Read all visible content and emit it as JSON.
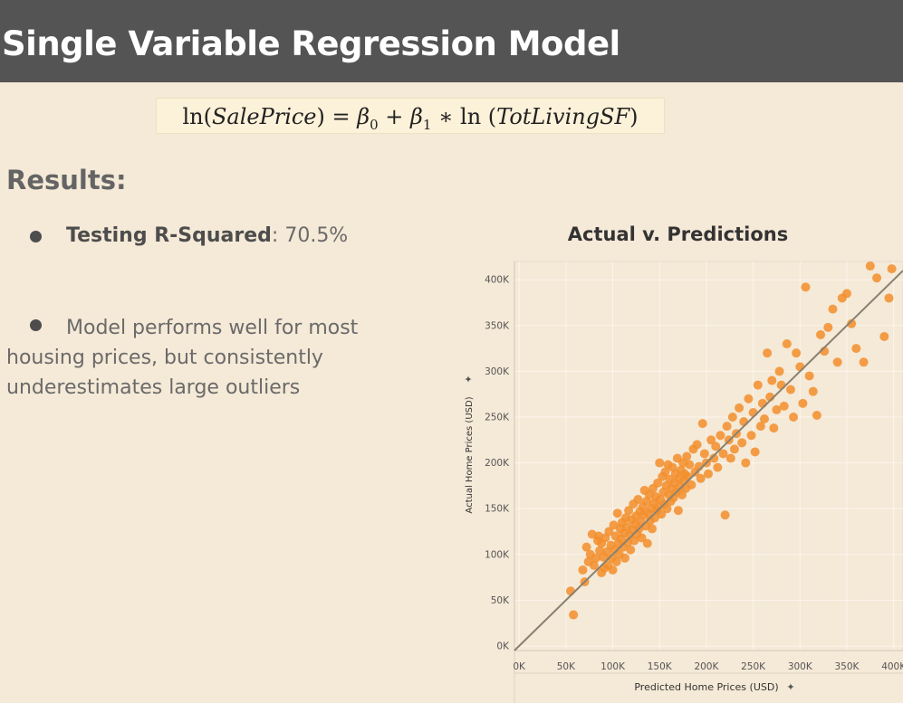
{
  "header": {
    "title": "Single Variable Regression Model"
  },
  "formula": {
    "lhs_fn": "ln(",
    "lhs_var": "SalePrice",
    "lhs_close": ") = ",
    "b0": "β",
    "b0_sub": "0",
    "plus": " + ",
    "b1": "β",
    "b1_sub": "1",
    "times": " ∗ ln (",
    "rhs_var": "TotLivingSF",
    "rhs_close": ")"
  },
  "results": {
    "heading": "Results:",
    "bullet1_label": "Testing R-Squared",
    "bullet1_value": ": 70.5%",
    "bullet2_text": "Model performs well for most housing prices, but consistently underestimates large outliers"
  },
  "chart_data": {
    "type": "scatter",
    "title": "Actual v. Predictions",
    "xlabel": "Predicted Home Prices (USD)",
    "ylabel": "Actual Home Prices (USD)",
    "xlim": [
      -5000,
      410000
    ],
    "ylim": [
      -5000,
      420000
    ],
    "x_ticks": [
      0,
      50000,
      100000,
      150000,
      200000,
      250000,
      300000,
      350000,
      400000
    ],
    "x_tick_labels": [
      "0K",
      "50K",
      "100K",
      "150K",
      "200K",
      "250K",
      "300K",
      "350K",
      "400K"
    ],
    "y_ticks": [
      0,
      50000,
      100000,
      150000,
      200000,
      250000,
      300000,
      350000,
      400000
    ],
    "y_tick_labels": [
      "0K",
      "50K",
      "100K",
      "150K",
      "200K",
      "250K",
      "300K",
      "350K",
      "400K"
    ],
    "grid": true,
    "reference_line": {
      "x": [
        -5000,
        410000
      ],
      "y": [
        -5000,
        410000
      ]
    },
    "point_color": "#f28e2b",
    "line_color": "#8a8170",
    "points": [
      [
        55000,
        60000
      ],
      [
        58000,
        34000
      ],
      [
        68000,
        83000
      ],
      [
        70000,
        70000
      ],
      [
        72000,
        108000
      ],
      [
        74000,
        92000
      ],
      [
        76000,
        100000
      ],
      [
        78000,
        122000
      ],
      [
        80000,
        88000
      ],
      [
        82000,
        96000
      ],
      [
        84000,
        115000
      ],
      [
        85000,
        120000
      ],
      [
        86000,
        104000
      ],
      [
        88000,
        112000
      ],
      [
        88000,
        80000
      ],
      [
        90000,
        97000
      ],
      [
        91000,
        85000
      ],
      [
        92000,
        118000
      ],
      [
        94000,
        103000
      ],
      [
        95000,
        88000
      ],
      [
        96000,
        125000
      ],
      [
        98000,
        110000
      ],
      [
        99000,
        96000
      ],
      [
        100000,
        83000
      ],
      [
        101000,
        132000
      ],
      [
        102000,
        105000
      ],
      [
        103000,
        120000
      ],
      [
        104000,
        92000
      ],
      [
        105000,
        145000
      ],
      [
        106000,
        112000
      ],
      [
        107000,
        100000
      ],
      [
        108000,
        128000
      ],
      [
        109000,
        117000
      ],
      [
        110000,
        135000
      ],
      [
        111000,
        108000
      ],
      [
        112000,
        123000
      ],
      [
        113000,
        96000
      ],
      [
        114000,
        140000
      ],
      [
        115000,
        130000
      ],
      [
        116000,
        113000
      ],
      [
        117000,
        148000
      ],
      [
        118000,
        121000
      ],
      [
        119000,
        105000
      ],
      [
        120000,
        138000
      ],
      [
        121000,
        127000
      ],
      [
        122000,
        155000
      ],
      [
        123000,
        115000
      ],
      [
        124000,
        133000
      ],
      [
        125000,
        142000
      ],
      [
        126000,
        122000
      ],
      [
        127000,
        160000
      ],
      [
        128000,
        128000
      ],
      [
        129000,
        147000
      ],
      [
        130000,
        136000
      ],
      [
        131000,
        118000
      ],
      [
        132000,
        152000
      ],
      [
        133000,
        143000
      ],
      [
        134000,
        170000
      ],
      [
        135000,
        131000
      ],
      [
        136000,
        158000
      ],
      [
        137000,
        112000
      ],
      [
        138000,
        145000
      ],
      [
        139000,
        165000
      ],
      [
        140000,
        137000
      ],
      [
        141000,
        150000
      ],
      [
        142000,
        128000
      ],
      [
        143000,
        172000
      ],
      [
        144000,
        156000
      ],
      [
        145000,
        140000
      ],
      [
        146000,
        163000
      ],
      [
        147000,
        148000
      ],
      [
        148000,
        178000
      ],
      [
        149000,
        152000
      ],
      [
        150000,
        200000
      ],
      [
        151000,
        160000
      ],
      [
        152000,
        144000
      ],
      [
        153000,
        185000
      ],
      [
        154000,
        168000
      ],
      [
        155000,
        155000
      ],
      [
        156000,
        190000
      ],
      [
        157000,
        175000
      ],
      [
        158000,
        150000
      ],
      [
        159000,
        198000
      ],
      [
        160000,
        165000
      ],
      [
        161000,
        182000
      ],
      [
        162000,
        158000
      ],
      [
        163000,
        172000
      ],
      [
        164000,
        195000
      ],
      [
        165000,
        162000
      ],
      [
        166000,
        178000
      ],
      [
        167000,
        188000
      ],
      [
        168000,
        168000
      ],
      [
        169000,
        205000
      ],
      [
        170000,
        148000
      ],
      [
        171000,
        183000
      ],
      [
        172000,
        174000
      ],
      [
        173000,
        192000
      ],
      [
        174000,
        165000
      ],
      [
        175000,
        200000
      ],
      [
        176000,
        180000
      ],
      [
        177000,
        188000
      ],
      [
        178000,
        172000
      ],
      [
        179000,
        207000
      ],
      [
        180000,
        185000
      ],
      [
        182000,
        198000
      ],
      [
        184000,
        176000
      ],
      [
        186000,
        215000
      ],
      [
        188000,
        190000
      ],
      [
        190000,
        220000
      ],
      [
        192000,
        196000
      ],
      [
        194000,
        183000
      ],
      [
        196000,
        243000
      ],
      [
        198000,
        210000
      ],
      [
        200000,
        200000
      ],
      [
        202000,
        188000
      ],
      [
        205000,
        225000
      ],
      [
        208000,
        205000
      ],
      [
        210000,
        218000
      ],
      [
        212000,
        195000
      ],
      [
        215000,
        230000
      ],
      [
        218000,
        210000
      ],
      [
        220000,
        143000
      ],
      [
        222000,
        240000
      ],
      [
        224000,
        225000
      ],
      [
        226000,
        205000
      ],
      [
        228000,
        250000
      ],
      [
        230000,
        215000
      ],
      [
        232000,
        232000
      ],
      [
        235000,
        260000
      ],
      [
        238000,
        222000
      ],
      [
        240000,
        245000
      ],
      [
        242000,
        200000
      ],
      [
        245000,
        270000
      ],
      [
        248000,
        230000
      ],
      [
        250000,
        255000
      ],
      [
        252000,
        212000
      ],
      [
        255000,
        285000
      ],
      [
        258000,
        240000
      ],
      [
        260000,
        265000
      ],
      [
        262000,
        248000
      ],
      [
        265000,
        320000
      ],
      [
        268000,
        272000
      ],
      [
        270000,
        290000
      ],
      [
        272000,
        238000
      ],
      [
        275000,
        258000
      ],
      [
        278000,
        300000
      ],
      [
        280000,
        285000
      ],
      [
        283000,
        262000
      ],
      [
        286000,
        330000
      ],
      [
        290000,
        280000
      ],
      [
        293000,
        250000
      ],
      [
        296000,
        320000
      ],
      [
        300000,
        305000
      ],
      [
        303000,
        265000
      ],
      [
        306000,
        392000
      ],
      [
        310000,
        295000
      ],
      [
        314000,
        278000
      ],
      [
        318000,
        252000
      ],
      [
        322000,
        340000
      ],
      [
        326000,
        322000
      ],
      [
        330000,
        348000
      ],
      [
        335000,
        368000
      ],
      [
        340000,
        310000
      ],
      [
        345000,
        380000
      ],
      [
        350000,
        385000
      ],
      [
        355000,
        352000
      ],
      [
        360000,
        325000
      ],
      [
        368000,
        310000
      ],
      [
        375000,
        415000
      ],
      [
        382000,
        402000
      ],
      [
        390000,
        338000
      ],
      [
        395000,
        380000
      ],
      [
        398000,
        412000
      ]
    ]
  }
}
